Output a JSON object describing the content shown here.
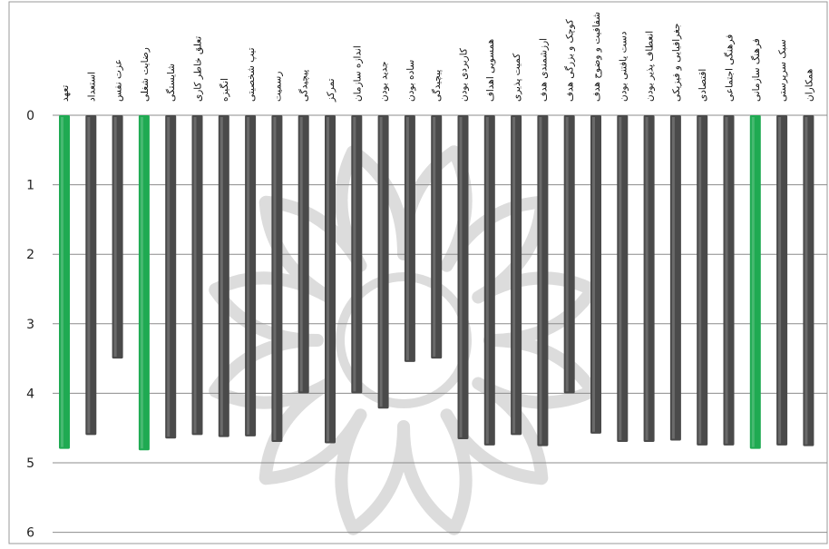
{
  "chart_data": {
    "type": "bar",
    "orientation": "vertical-hanging",
    "y_axis_inverted": true,
    "ylim": [
      0,
      6
    ],
    "yticks": [
      0,
      1,
      2,
      3,
      4,
      5,
      6
    ],
    "grid": true,
    "legend": "none",
    "title": "",
    "xlabel": "",
    "ylabel": "",
    "categories": [
      "تعهد",
      "استعداد",
      "عزت نفس",
      "رضایت شغلی",
      "شایستگی",
      "تعلق خاطر کاری",
      "انگیزه",
      "تیپ شخصیتی",
      "رسمیت",
      "پیچیدگی",
      "تمرکز",
      "اندازه سازمان",
      "جدید بودن",
      "ساده بودن",
      "پیچیدگی",
      "کاربردی بودن",
      "همسویی اهداف",
      "کمیت پذیری",
      "ارزشمندی هدف",
      "کوچک و بزرگی هدف",
      "شفافیت و وضوح هدف",
      "دست یافتنی بودن",
      "انعطاف پذیر بودن",
      "جغرافیایی و فیزیکی",
      "اقتصادی",
      "فرهنگی اجتماعی",
      "فرهنگ سازمانی",
      "سبک سرپرستی",
      "همکاران"
    ],
    "values": [
      4.8,
      4.6,
      3.5,
      4.82,
      4.65,
      4.6,
      4.63,
      4.62,
      4.7,
      4.0,
      4.72,
      4.0,
      4.22,
      3.55,
      3.5,
      4.66,
      4.75,
      4.6,
      4.76,
      4.0,
      4.58,
      4.7,
      4.7,
      4.68,
      4.75,
      4.75,
      4.8,
      4.75,
      4.76
    ],
    "highlighted": [
      0,
      3,
      26
    ],
    "colors": {
      "bar": "#4a4a4a",
      "highlight": "#1faa52",
      "grid": "#8c8c8c",
      "watermark": "#dcdcdc"
    }
  }
}
